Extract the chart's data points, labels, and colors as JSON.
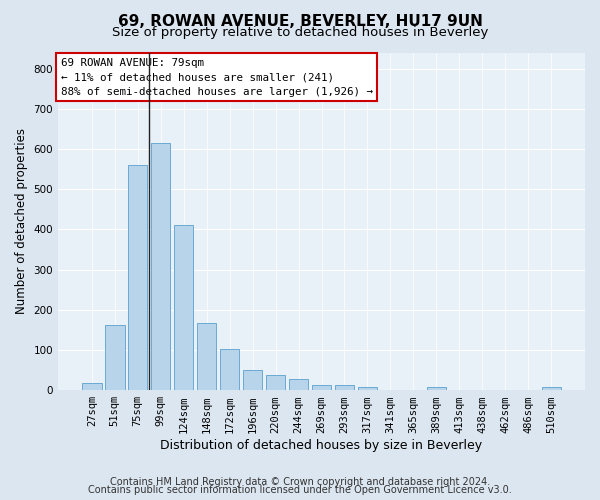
{
  "title1": "69, ROWAN AVENUE, BEVERLEY, HU17 9UN",
  "title2": "Size of property relative to detached houses in Beverley",
  "xlabel": "Distribution of detached houses by size in Beverley",
  "ylabel": "Number of detached properties",
  "bar_color": "#b8d4ea",
  "bar_edge_color": "#6aaad4",
  "categories": [
    "27sqm",
    "51sqm",
    "75sqm",
    "99sqm",
    "124sqm",
    "148sqm",
    "172sqm",
    "196sqm",
    "220sqm",
    "244sqm",
    "269sqm",
    "293sqm",
    "317sqm",
    "341sqm",
    "365sqm",
    "389sqm",
    "413sqm",
    "438sqm",
    "462sqm",
    "486sqm",
    "510sqm"
  ],
  "values": [
    18,
    163,
    560,
    615,
    410,
    168,
    103,
    50,
    38,
    29,
    14,
    13,
    9,
    0,
    0,
    8,
    0,
    0,
    0,
    0,
    7
  ],
  "ylim": [
    0,
    840
  ],
  "yticks": [
    0,
    100,
    200,
    300,
    400,
    500,
    600,
    700,
    800
  ],
  "vline_x": 2.5,
  "annotation_text": "69 ROWAN AVENUE: 79sqm\n← 11% of detached houses are smaller (241)\n88% of semi-detached houses are larger (1,926) →",
  "annotation_box_color": "#ffffff",
  "annotation_border_color": "#cc0000",
  "footer1": "Contains HM Land Registry data © Crown copyright and database right 2024.",
  "footer2": "Contains public sector information licensed under the Open Government Licence v3.0.",
  "bg_color": "#dce6f0",
  "plot_bg_color": "#e8f0f8",
  "grid_color": "#ffffff",
  "title1_fontsize": 11,
  "title2_fontsize": 9.5,
  "xlabel_fontsize": 9,
  "ylabel_fontsize": 8.5,
  "tick_fontsize": 7.5,
  "footer_fontsize": 7
}
